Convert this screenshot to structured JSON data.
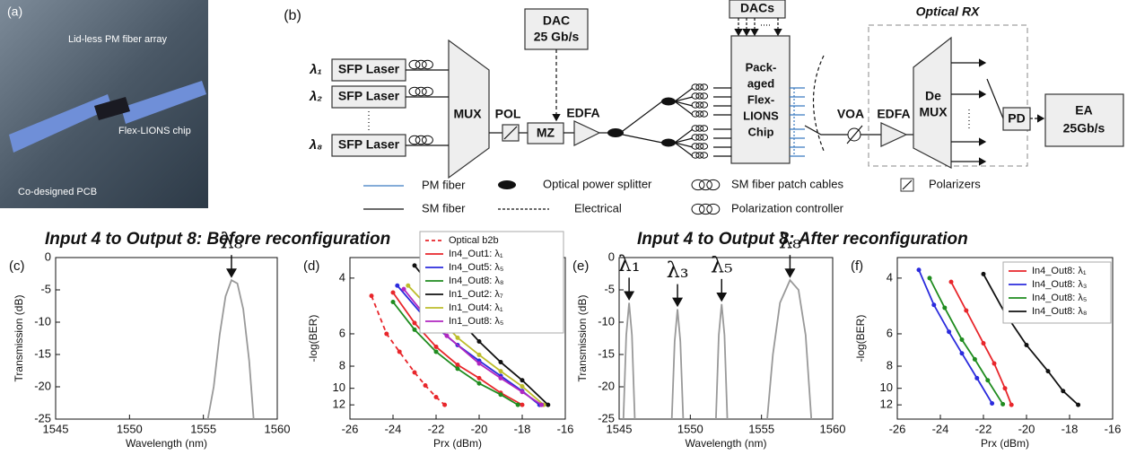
{
  "photo": {
    "panel": "(a)",
    "labels": [
      "Lid-less PM fiber array",
      "Flex-LIONS chip",
      "Co-designed PCB"
    ]
  },
  "diagram": {
    "panel": "(b)",
    "lasers": [
      {
        "wavelength": "λ₁",
        "label": "SFP Laser"
      },
      {
        "wavelength": "λ₂",
        "label": "SFP Laser"
      },
      {
        "wavelength": "λ₈",
        "label": "SFP Laser"
      }
    ],
    "mux": "MUX",
    "pol": "POL",
    "mz": "MZ",
    "dac": [
      "DAC",
      "25 Gb/s"
    ],
    "edfa": "EDFA",
    "dacs": "DACs",
    "chip": [
      "Pack-",
      "aged",
      "Flex-",
      "LIONS",
      "Chip"
    ],
    "voa": "VOA",
    "rx_title": "Optical RX",
    "rx_edfa": "EDFA",
    "demux": [
      "De",
      "MUX"
    ],
    "pd": "PD",
    "ea": [
      "EA",
      "25Gb/s"
    ],
    "legend": [
      "PM fiber",
      "SM fiber",
      "Optical power splitter",
      "Electrical",
      "SM fiber patch cables",
      "Polarization controller",
      "Polarizers"
    ]
  },
  "chart_data": [
    {
      "panel": "(c)",
      "title": "Input 4 to Output 8: Before reconfiguration",
      "type": "line",
      "xlabel": "Wavelength (nm)",
      "ylabel": "Transmission (dB)",
      "xlim": [
        1545,
        1560
      ],
      "ylim": [
        -25,
        0
      ],
      "xticks": [
        1545,
        1550,
        1555,
        1560
      ],
      "yticks": [
        0,
        -5,
        -10,
        -15,
        -20,
        -25
      ],
      "color": "#999999",
      "x": [
        1555.3,
        1555.7,
        1556.1,
        1556.5,
        1556.9,
        1557.3,
        1557.7,
        1558.1,
        1558.4
      ],
      "values": [
        -25,
        -20,
        -12,
        -6,
        -3.5,
        -4,
        -8,
        -16,
        -25
      ],
      "annotations": [
        {
          "text": "λ₈",
          "x": 1556.9,
          "y": -3.5
        }
      ]
    },
    {
      "panel": "(d)",
      "type": "line",
      "markers": true,
      "xlabel": "Prx (dBm)",
      "ylabel": "-log(BER)",
      "xlim": [
        -26,
        -16
      ],
      "xticks": [
        -26,
        -24,
        -22,
        -20,
        -18,
        -16
      ],
      "ylim": [
        3.53,
        14.2
      ],
      "yscale": "loglog",
      "yinverted": true,
      "yticks": [
        4,
        6,
        8,
        10,
        12
      ],
      "legend": "upper right",
      "series": [
        {
          "name": "Optical b2b",
          "color": "#e8262b",
          "linestyle": "dashed",
          "x": [
            -25,
            -24.3,
            -23.7,
            -23,
            -22.5,
            -22,
            -21.6
          ],
          "values": [
            4.5,
            6,
            7,
            8.5,
            9.7,
            11,
            12
          ]
        },
        {
          "name": "In4_Out1: λ₁",
          "color": "#e8262b",
          "x": [
            -24,
            -23,
            -22,
            -21,
            -20,
            -19,
            -18
          ],
          "values": [
            4.4,
            5.5,
            6.7,
            7.9,
            9,
            10.5,
            12
          ]
        },
        {
          "name": "In4_Out5: λ₅",
          "color": "#2b2bdd",
          "x": [
            -23.8,
            -22.5,
            -21,
            -20,
            -19,
            -18,
            -17.2
          ],
          "values": [
            4.2,
            5.3,
            6.6,
            7.6,
            8.8,
            10.3,
            12
          ]
        },
        {
          "name": "In4_Out8: λ₈",
          "color": "#1f8c1f",
          "x": [
            -24,
            -23,
            -22,
            -21,
            -20,
            -19,
            -18.2
          ],
          "values": [
            4.7,
            5.8,
            7,
            8.2,
            9.5,
            10.7,
            12
          ]
        },
        {
          "name": "In1_Out2: λ₇",
          "color": "#111111",
          "x": [
            -23,
            -22,
            -21,
            -20,
            -19,
            -18,
            -16.8
          ],
          "values": [
            3.7,
            4.4,
            5.3,
            6.4,
            7.7,
            9.2,
            12
          ]
        },
        {
          "name": "In1_Out4: λ₁",
          "color": "#bdbd2b",
          "x": [
            -23.3,
            -22.2,
            -21,
            -20,
            -19,
            -18,
            -17
          ],
          "values": [
            4.2,
            5,
            6.2,
            7.2,
            8.4,
            9.8,
            12
          ]
        },
        {
          "name": "In1_Out8: λ₅",
          "color": "#b027c0",
          "x": [
            -23.5,
            -22.5,
            -21.5,
            -20,
            -19,
            -18,
            -17.1
          ],
          "values": [
            4.3,
            5.2,
            6.1,
            7.8,
            9,
            10.4,
            12
          ]
        }
      ]
    },
    {
      "panel": "(e)",
      "title": "Input 4 to Output 8: After reconfiguration",
      "type": "line",
      "xlabel": "Wavelength (nm)",
      "ylabel": "Transmission (dB)",
      "xlim": [
        1545,
        1560
      ],
      "ylim": [
        -25,
        0
      ],
      "xticks": [
        1545,
        1550,
        1555,
        1560
      ],
      "yticks": [
        0,
        -5,
        -10,
        -15,
        -20,
        -25
      ],
      "color": "#999999",
      "x": [
        1545.3,
        1545.5,
        1545.7,
        1545.9,
        1546.1,
        1547.5,
        1548.7,
        1548.9,
        1549.1,
        1549.3,
        1549.5,
        1550.8,
        1551.8,
        1552,
        1552.2,
        1552.4,
        1552.6,
        1554,
        1555.4,
        1555.8,
        1556.3,
        1557,
        1557.6,
        1558.1,
        1558.5
      ],
      "values": [
        -25,
        -12,
        -7,
        -12,
        -25,
        null,
        -25,
        -13,
        -8,
        -13,
        -25,
        null,
        -25,
        -12,
        -7.2,
        -12,
        -25,
        null,
        -25,
        -15,
        -7,
        -3.5,
        -5,
        -12,
        -25
      ],
      "annotations": [
        {
          "text": "λ₁",
          "x": 1545.7,
          "y": -7
        },
        {
          "text": "λ₃",
          "x": 1549.1,
          "y": -8
        },
        {
          "text": "λ₅",
          "x": 1552.2,
          "y": -7.2
        },
        {
          "text": "λ₈",
          "x": 1557,
          "y": -3.5
        }
      ]
    },
    {
      "panel": "(f)",
      "type": "line",
      "markers": true,
      "xlabel": "Prx (dBm)",
      "ylabel": "-log(BER)",
      "xlim": [
        -26,
        -16
      ],
      "xticks": [
        -26,
        -24,
        -22,
        -20,
        -18,
        -16
      ],
      "ylim": [
        3.53,
        14.2
      ],
      "yscale": "loglog",
      "yinverted": true,
      "yticks": [
        4,
        6,
        8,
        10,
        12
      ],
      "legend": "upper right",
      "series": [
        {
          "name": "In4_Out8: λ₁",
          "color": "#e8262b",
          "x": [
            -23.5,
            -22.8,
            -22,
            -21.5,
            -21,
            -20.7
          ],
          "values": [
            4.1,
            5,
            6.5,
            7.8,
            10,
            12
          ]
        },
        {
          "name": "In4_Out8: λ₃",
          "color": "#2b2bdd",
          "x": [
            -25,
            -24.3,
            -23.6,
            -23,
            -22.3,
            -21.6
          ],
          "values": [
            3.8,
            4.8,
            5.9,
            7.1,
            9,
            11.8
          ]
        },
        {
          "name": "In4_Out8: λ₅",
          "color": "#1f8c1f",
          "x": [
            -24.5,
            -23.8,
            -23,
            -22.4,
            -21.8,
            -21.1
          ],
          "values": [
            4,
            4.9,
            6.3,
            7.5,
            9.2,
            11.9
          ]
        },
        {
          "name": "In4_Out8: λ₈",
          "color": "#111111",
          "x": [
            -22,
            -21,
            -20,
            -19,
            -18.3,
            -17.6
          ],
          "values": [
            3.9,
            5.1,
            6.6,
            8.4,
            10.3,
            12
          ]
        }
      ]
    }
  ]
}
